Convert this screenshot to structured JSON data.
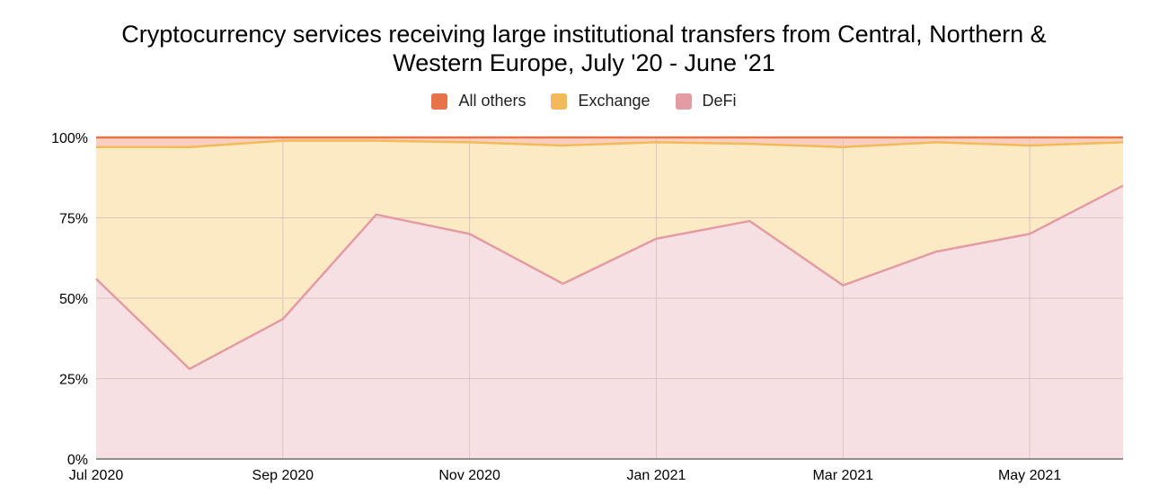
{
  "chart_data": {
    "type": "area",
    "stacked": true,
    "percent": true,
    "title_lines": [
      "Cryptocurrency services receiving large institutional transfers from Central, Northern &",
      "Western Europe, July '20 - June '21"
    ],
    "x": [
      "2020-07",
      "2020-08",
      "2020-09",
      "2020-10",
      "2020-11",
      "2020-12",
      "2021-01",
      "2021-02",
      "2021-03",
      "2021-04",
      "2021-05",
      "2021-06"
    ],
    "x_tick_labels": [
      {
        "x": "2020-07",
        "label": "Jul 2020"
      },
      {
        "x": "2020-09",
        "label": "Sep 2020"
      },
      {
        "x": "2020-11",
        "label": "Nov 2020"
      },
      {
        "x": "2021-01",
        "label": "Jan 2021"
      },
      {
        "x": "2021-03",
        "label": "Mar 2021"
      },
      {
        "x": "2021-05",
        "label": "May 2021"
      }
    ],
    "y_tick_labels": [
      "0%",
      "25%",
      "50%",
      "75%",
      "100%"
    ],
    "ylim": [
      0,
      100
    ],
    "grid": true,
    "legend_position": "top",
    "series": [
      {
        "name": "All others",
        "line_color": "#e8734a",
        "fill_color": "#f9d0c0",
        "values": [
          3,
          3,
          1,
          1,
          1.5,
          2.5,
          1.5,
          2,
          3,
          1.5,
          2.5,
          1.5
        ]
      },
      {
        "name": "Exchange",
        "line_color": "#f2ba5a",
        "fill_color": "#fbeac4",
        "values": [
          41,
          69,
          55.5,
          23,
          28.5,
          43,
          30,
          24,
          43,
          34,
          27.5,
          13.5
        ]
      },
      {
        "name": "DeFi",
        "line_color": "#e39ca3",
        "fill_color": "#f7e0e4",
        "values": [
          56,
          28,
          43.5,
          76,
          70,
          54.5,
          68.5,
          74,
          54,
          64.5,
          70,
          85
        ]
      }
    ]
  }
}
